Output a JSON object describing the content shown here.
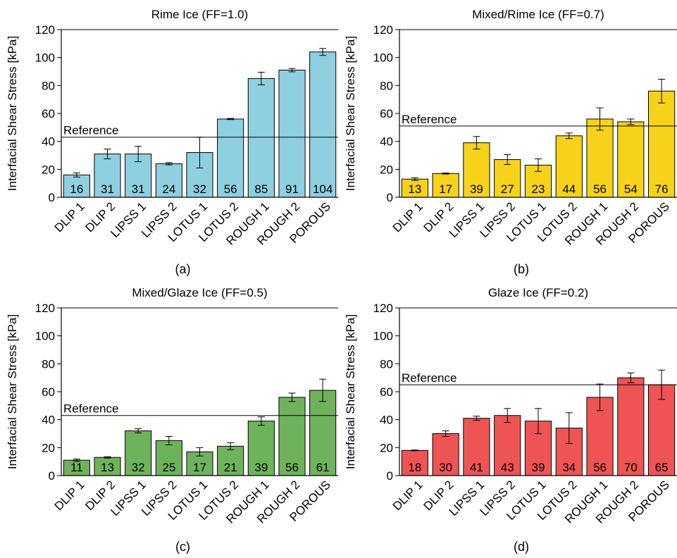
{
  "chart_data": [
    {
      "type": "bar",
      "panel": "(a)",
      "title": "Rime Ice (FF=1.0)",
      "ylabel": "Interfacial Shear Stress [kPa]",
      "xlabel": "",
      "categories": [
        "DLIP 1",
        "DLIP 2",
        "LIPSS 1",
        "LIPSS 2",
        "LOTUS 1",
        "LOTUS 2",
        "ROUGH 1",
        "ROUGH 2",
        "POROUS"
      ],
      "values": [
        16,
        31,
        31,
        24,
        32,
        56,
        85,
        91,
        104
      ],
      "errors": [
        1.5,
        3.5,
        5.5,
        0.8,
        11,
        0.4,
        4.5,
        1.2,
        2.5
      ],
      "value_labels": [
        "16",
        "31",
        "31",
        "24",
        "32",
        "56",
        "85",
        "91",
        "104"
      ],
      "ylim": [
        0,
        120
      ],
      "yticks": [
        0,
        20,
        40,
        60,
        80,
        100,
        120
      ],
      "reference": {
        "value": 43,
        "label": "Reference"
      },
      "color": "#8ecfe0"
    },
    {
      "type": "bar",
      "panel": "(b)",
      "title": "Mixed/Rime Ice (FF=0.7)",
      "ylabel": "Interfacial Shear Stress [kPa]",
      "xlabel": "",
      "categories": [
        "DLIP 1",
        "DLIP 2",
        "LIPSS 1",
        "LIPSS 2",
        "LOTUS 1",
        "LOTUS 2",
        "ROUGH 1",
        "ROUGH 2",
        "POROUS"
      ],
      "values": [
        13,
        17,
        39,
        27,
        23,
        44,
        56,
        54,
        76
      ],
      "errors": [
        1,
        0.4,
        4.5,
        3.5,
        4.5,
        2,
        8,
        2,
        8.5
      ],
      "value_labels": [
        "13",
        "17",
        "39",
        "27",
        "23",
        "44",
        "56",
        "54",
        "76"
      ],
      "ylim": [
        0,
        120
      ],
      "yticks": [
        0,
        20,
        40,
        60,
        80,
        100,
        120
      ],
      "reference": {
        "value": 51,
        "label": "Reference"
      },
      "color": "#f7d21a"
    },
    {
      "type": "bar",
      "panel": "(c)",
      "title": "Mixed/Glaze Ice (FF=0.5)",
      "ylabel": "Interfacial Shear Stress [kPa]",
      "xlabel": "",
      "categories": [
        "DLIP 1",
        "DLIP 2",
        "LIPSS 1",
        "LIPSS 2",
        "LOTUS 1",
        "LOTUS 2",
        "ROUGH 1",
        "ROUGH 2",
        "POROUS"
      ],
      "values": [
        11,
        13,
        32,
        25,
        17,
        21,
        39,
        56,
        61
      ],
      "errors": [
        0.8,
        0.5,
        1.5,
        3,
        3,
        2.5,
        3,
        3,
        8
      ],
      "value_labels": [
        "11",
        "13",
        "32",
        "25",
        "17",
        "21",
        "39",
        "56",
        "61"
      ],
      "ylim": [
        0,
        120
      ],
      "yticks": [
        0,
        20,
        40,
        60,
        80,
        100,
        120
      ],
      "reference": {
        "value": 43,
        "label": "Reference"
      },
      "color": "#6fb25c"
    },
    {
      "type": "bar",
      "panel": "(d)",
      "title": "Glaze Ice (FF=0.2)",
      "ylabel": "Interfacial Shear Stress [kPa]",
      "xlabel": "",
      "categories": [
        "DLIP 1",
        "DLIP 2",
        "LIPSS 1",
        "LIPSS 2",
        "LOTUS 1",
        "LOTUS 2",
        "ROUGH 1",
        "ROUGH 2",
        "POROUS"
      ],
      "values": [
        18,
        30,
        41,
        43,
        39,
        34,
        56,
        70,
        65
      ],
      "errors": [
        0.3,
        2,
        1.5,
        5,
        9,
        11,
        9.5,
        3.5,
        10.5
      ],
      "value_labels": [
        "18",
        "30",
        "41",
        "43",
        "39",
        "34",
        "56",
        "70",
        "65"
      ],
      "ylim": [
        0,
        120
      ],
      "yticks": [
        0,
        20,
        40,
        60,
        80,
        100,
        120
      ],
      "reference": {
        "value": 65,
        "label": "Reference"
      },
      "color": "#ee5454"
    }
  ]
}
